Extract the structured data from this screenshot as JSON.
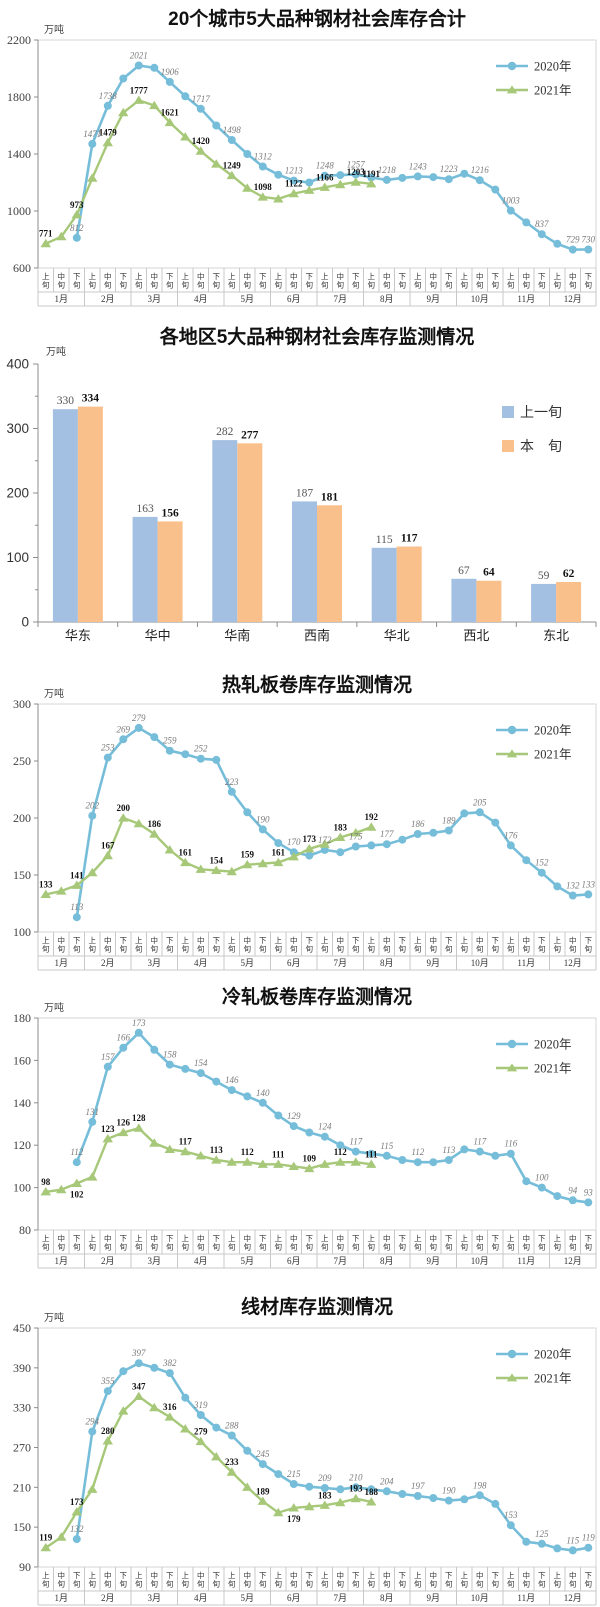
{
  "app": {
    "background": "#ffffff"
  },
  "colors": {
    "line2020": "#76BDD9",
    "line2021": "#A6C878",
    "bar_prev": "#A3C0E2",
    "bar_curr": "#FAC08C",
    "axis": "#8c8c8c",
    "grid": "#c8c8c8",
    "border": "#d6d6d6"
  },
  "x_axis": {
    "xun": [
      "上旬",
      "中旬",
      "下旬"
    ],
    "months": [
      "1月",
      "2月",
      "3月",
      "4月",
      "5月",
      "6月",
      "7月",
      "8月",
      "9月",
      "10月",
      "11月",
      "12月"
    ]
  },
  "chart_data": [
    {
      "type": "line",
      "title": "20个城市5大品种钢材社会库存合计",
      "unit": "万吨",
      "ylim": [
        600,
        2200
      ],
      "yticks": [
        600,
        1000,
        1400,
        1800,
        2200
      ],
      "legend_position": "top-right",
      "series": [
        {
          "name": "2020年",
          "marker": "circle",
          "color_key": "line2020",
          "start_index": 2,
          "values": [
            812,
            1471,
            1738,
            1930,
            2021,
            2005,
            1906,
            1805,
            1717,
            1600,
            1498,
            1400,
            1312,
            1255,
            1213,
            1200,
            1248,
            1252,
            1257,
            1235,
            1218,
            1232,
            1243,
            1238,
            1223,
            1262,
            1216,
            1150,
            1003,
            920,
            837,
            770,
            729,
            730
          ],
          "label_at": [
            2,
            3,
            4,
            6,
            8,
            10,
            12,
            14,
            16,
            18,
            20,
            22,
            24,
            26,
            28,
            30,
            32,
            34,
            35
          ],
          "label_below": []
        },
        {
          "name": "2021年",
          "marker": "triangle",
          "color_key": "line2021",
          "start_index": 0,
          "values": [
            771,
            820,
            973,
            1230,
            1479,
            1690,
            1777,
            1740,
            1621,
            1520,
            1420,
            1330,
            1249,
            1160,
            1098,
            1085,
            1122,
            1145,
            1166,
            1185,
            1203,
            1191
          ],
          "label_at": [
            0,
            2,
            4,
            6,
            8,
            10,
            12,
            14,
            16,
            18,
            20,
            21
          ],
          "label_below": []
        }
      ]
    },
    {
      "type": "bar",
      "title": "各地区5大品种钢材社会库存监测情况",
      "unit": "万吨",
      "ylim": [
        0,
        400
      ],
      "yticks": [
        0,
        100,
        200,
        300,
        400
      ],
      "legend_position": "right",
      "categories": [
        "华东",
        "华中",
        "华南",
        "西南",
        "华北",
        "西北",
        "东北"
      ],
      "series": [
        {
          "name": "上一旬",
          "color_key": "bar_prev",
          "values": [
            330,
            163,
            282,
            187,
            115,
            67,
            59
          ]
        },
        {
          "name": "本　旬",
          "color_key": "bar_curr",
          "values": [
            334,
            156,
            277,
            181,
            117,
            64,
            62
          ]
        }
      ]
    },
    {
      "type": "line",
      "title": "热轧板卷库存监测情况",
      "unit": "万吨",
      "ylim": [
        100,
        300
      ],
      "yticks": [
        100,
        150,
        200,
        250,
        300
      ],
      "legend_position": "top-right",
      "series": [
        {
          "name": "2020年",
          "marker": "circle",
          "color_key": "line2020",
          "start_index": 2,
          "values": [
            113,
            202,
            253,
            269,
            279,
            271,
            259,
            256,
            252,
            251,
            223,
            205,
            190,
            178,
            170,
            167,
            172,
            170,
            175,
            176,
            177,
            181,
            186,
            187,
            189,
            204,
            205,
            196,
            176,
            163,
            152,
            140,
            132,
            133
          ],
          "label_at": [
            2,
            3,
            4,
            5,
            6,
            8,
            10,
            12,
            14,
            16,
            18,
            20,
            22,
            24,
            26,
            28,
            30,
            32,
            34,
            35
          ],
          "label_below": []
        },
        {
          "name": "2021年",
          "marker": "triangle",
          "color_key": "line2021",
          "start_index": 0,
          "values": [
            133,
            136,
            141,
            152,
            167,
            200,
            195,
            186,
            172,
            161,
            155,
            154,
            153,
            159,
            160,
            161,
            166,
            173,
            177,
            183,
            187,
            192
          ],
          "label_at": [
            0,
            2,
            4,
            5,
            7,
            9,
            11,
            13,
            15,
            17,
            19,
            21
          ],
          "label_below": []
        }
      ]
    },
    {
      "type": "line",
      "title": "冷轧板卷库存监测情况",
      "unit": "万吨",
      "ylim": [
        80,
        180
      ],
      "yticks": [
        80,
        100,
        120,
        140,
        160,
        180
      ],
      "legend_position": "top-right",
      "series": [
        {
          "name": "2020年",
          "marker": "circle",
          "color_key": "line2020",
          "start_index": 2,
          "values": [
            112,
            131,
            157,
            166,
            173,
            165,
            158,
            156,
            154,
            150,
            146,
            143,
            140,
            134,
            129,
            126,
            124,
            120,
            117,
            116,
            115,
            113,
            112,
            112,
            113,
            118,
            117,
            115,
            116,
            103,
            100,
            96,
            94,
            93
          ],
          "label_at": [
            2,
            3,
            4,
            5,
            6,
            8,
            10,
            12,
            14,
            16,
            18,
            20,
            22,
            24,
            26,
            28,
            30,
            32,
            34,
            35
          ],
          "label_below": []
        },
        {
          "name": "2021年",
          "marker": "triangle",
          "color_key": "line2021",
          "start_index": 0,
          "values": [
            98,
            99,
            102,
            105,
            123,
            126,
            128,
            121,
            118,
            117,
            115,
            113,
            112,
            112,
            111,
            111,
            110,
            109,
            111,
            112,
            112,
            111
          ],
          "label_at": [
            0,
            2,
            4,
            5,
            6,
            9,
            11,
            13,
            15,
            17,
            19,
            21
          ],
          "label_below": [
            2
          ]
        }
      ]
    },
    {
      "type": "line",
      "title": "线材库存监测情况",
      "unit": "万吨",
      "ylim": [
        90,
        450
      ],
      "yticks": [
        90,
        150,
        210,
        270,
        330,
        390,
        450
      ],
      "legend_position": "top-right",
      "series": [
        {
          "name": "2020年",
          "marker": "circle",
          "color_key": "line2020",
          "start_index": 2,
          "values": [
            132,
            294,
            355,
            385,
            397,
            390,
            382,
            345,
            319,
            300,
            288,
            265,
            245,
            230,
            215,
            211,
            209,
            207,
            210,
            207,
            204,
            200,
            197,
            194,
            190,
            192,
            198,
            185,
            153,
            128,
            125,
            118,
            115,
            119
          ],
          "label_at": [
            2,
            3,
            4,
            6,
            8,
            10,
            12,
            14,
            16,
            18,
            20,
            22,
            24,
            26,
            28,
            30,
            32,
            34,
            35
          ],
          "label_below": []
        },
        {
          "name": "2021年",
          "marker": "triangle",
          "color_key": "line2021",
          "start_index": 0,
          "values": [
            119,
            135,
            173,
            207,
            280,
            325,
            347,
            330,
            316,
            298,
            279,
            256,
            233,
            210,
            189,
            172,
            179,
            181,
            183,
            187,
            193,
            188
          ],
          "label_at": [
            0,
            2,
            4,
            6,
            8,
            10,
            12,
            14,
            16,
            18,
            20,
            21
          ],
          "label_below": [
            16
          ]
        }
      ]
    }
  ]
}
